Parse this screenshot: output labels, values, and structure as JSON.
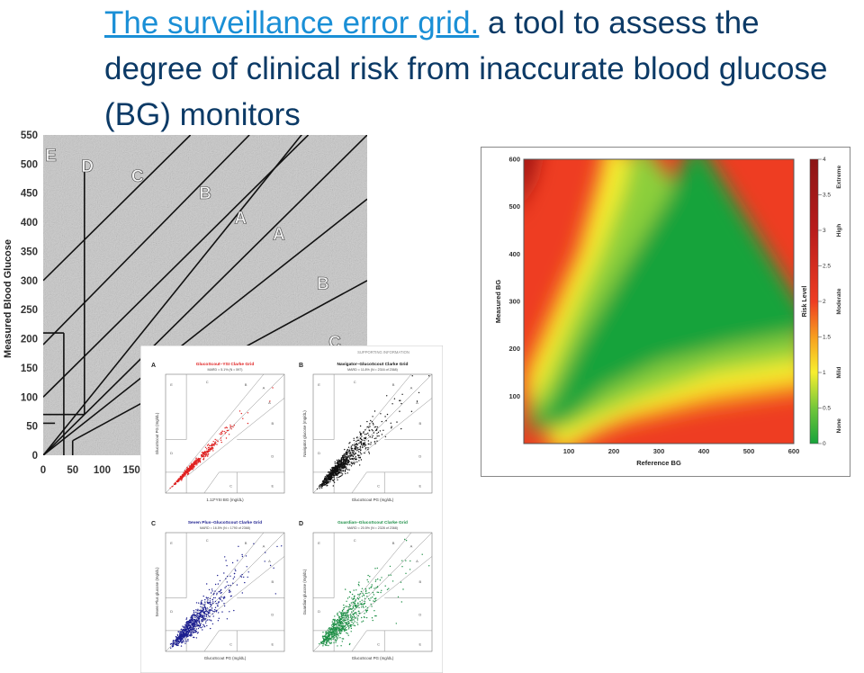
{
  "slide": {
    "title_link": "The surveillance error grid.",
    "title_rest": " a tool to assess the degree of clinical risk from inaccurate blood glucose (BG) monitors",
    "title_color": "#0c3a66",
    "link_color": "#1a8fd6"
  },
  "chart_data": [
    {
      "type": "line",
      "name": "clarke-error-grid-background",
      "ylabel": "Measured Blood Glucose",
      "xlabel": "",
      "x_ticks": [
        0,
        50,
        100,
        150
      ],
      "y_ticks": [
        0,
        50,
        100,
        150,
        200,
        250,
        300,
        350,
        400,
        450,
        500,
        550
      ],
      "xlim": [
        0,
        550
      ],
      "ylim": [
        0,
        550
      ],
      "zone_labels": [
        "E",
        "D",
        "C",
        "B",
        "A",
        "A",
        "B",
        "C"
      ]
    },
    {
      "type": "heatmap",
      "name": "surveillance-error-grid",
      "xlabel": "Reference BG",
      "ylabel": "Measured BG",
      "x_ticks": [
        100,
        200,
        300,
        400,
        500,
        600
      ],
      "y_ticks": [
        100,
        200,
        300,
        400,
        500,
        600
      ],
      "xlim": [
        0,
        600
      ],
      "ylim": [
        0,
        600
      ],
      "colorbar": {
        "title": "Risk Level",
        "range": [
          0,
          4
        ],
        "ticks": [
          "0",
          "0.5",
          "1",
          "1.5",
          "2",
          "2.5",
          "3",
          "3.5",
          "4"
        ],
        "categories": [
          "None",
          "Mild",
          "Moderate",
          "High",
          "Extreme"
        ],
        "colors": [
          "#17a33b",
          "#8ccf3a",
          "#f7ef2e",
          "#f7a21f",
          "#ee3d22",
          "#b91c1c",
          "#8c1616"
        ]
      }
    },
    {
      "type": "scatter",
      "name": "clarke-grids-composite",
      "caption": "SUPPORTING INFORMATION",
      "panels": [
        {
          "letter": "A",
          "title": "GlucoScout–YSI Clarke Grid",
          "subtitle": "MARD = 5.1% (N = 597)",
          "xlabel": "1.12*YSI BG (mg/dL)",
          "ylabel": "GlucoScout PG (mg/dL)",
          "color": "#e02020"
        },
        {
          "letter": "B",
          "title": "Navigator–GlucoScout Clarke Grid",
          "subtitle": "MARD = 11.8% (N = 2316 of 2368)",
          "xlabel": "GlucoScout PG (mg/dL)",
          "ylabel": "Navigator glucose (mg/dL)",
          "color": "#111111"
        },
        {
          "letter": "C",
          "title": "Seven Plus–GlucoScout Clarke Grid",
          "subtitle": "MARD = 16.5% (N = 1790 of 2368)",
          "xlabel": "GlucoScout PG (mg/dL)",
          "ylabel": "Seven Plus glucose (mg/dL)",
          "color": "#1c1f8f"
        },
        {
          "letter": "D",
          "title": "Guardian–GlucoScout Clarke Grid",
          "subtitle": "MARD = 20.5% (N = 2328 of 2368)",
          "xlabel": "GlucoScout PG (mg/dL)",
          "ylabel": "Guardian glucose (mg/dL)",
          "color": "#1d8f46"
        }
      ]
    }
  ]
}
